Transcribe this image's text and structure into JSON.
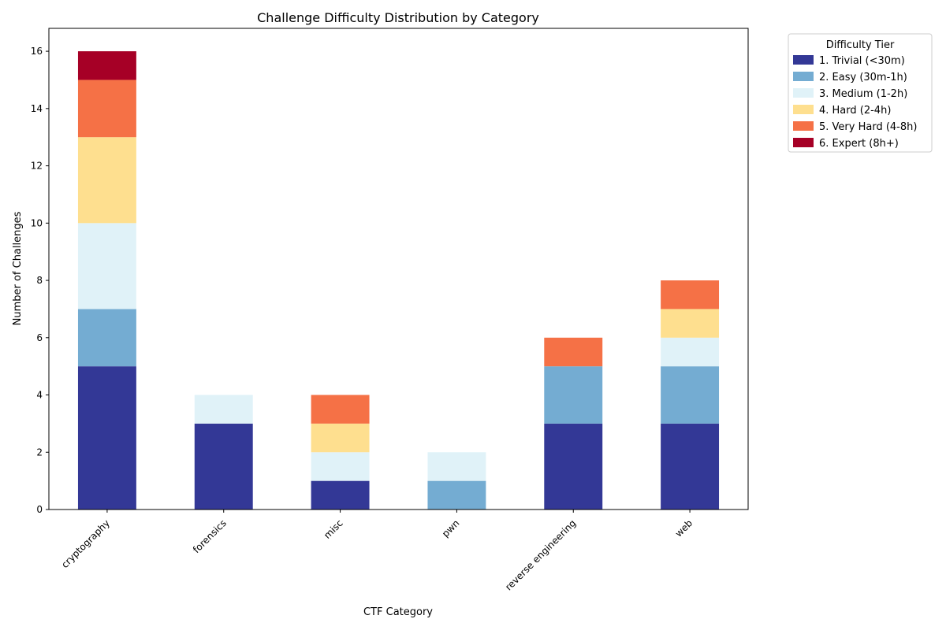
{
  "chart_data": {
    "type": "bar",
    "stacked": true,
    "title": "Challenge Difficulty Distribution by Category",
    "xlabel": "CTF Category",
    "ylabel": "Number of Challenges",
    "ylim": [
      0,
      16.8
    ],
    "yticks": [
      0,
      2,
      4,
      6,
      8,
      10,
      12,
      14,
      16
    ],
    "grid": false,
    "legend": {
      "title": "Difficulty Tier",
      "placement": "outside-top-right"
    },
    "categories": [
      "cryptography",
      "forensics",
      "misc",
      "pwn",
      "reverse engineering",
      "web"
    ],
    "series": [
      {
        "name": "1. Trivial (<30m)",
        "color": "#333896",
        "values": [
          5,
          3,
          1,
          0,
          3,
          3
        ]
      },
      {
        "name": "2. Easy (30m-1h)",
        "color": "#74acd2",
        "values": [
          2,
          0,
          0,
          1,
          2,
          2
        ]
      },
      {
        "name": "3. Medium (1-2h)",
        "color": "#e0f2f8",
        "values": [
          3,
          1,
          1,
          1,
          0,
          1
        ]
      },
      {
        "name": "4. Hard (2-4h)",
        "color": "#fedf8f",
        "values": [
          3,
          0,
          1,
          0,
          0,
          1
        ]
      },
      {
        "name": "5. Very Hard (4-8h)",
        "color": "#f57146",
        "values": [
          2,
          0,
          1,
          0,
          1,
          1
        ]
      },
      {
        "name": "6. Expert (8h+)",
        "color": "#a60026",
        "values": [
          1,
          0,
          0,
          0,
          0,
          0
        ]
      }
    ]
  }
}
